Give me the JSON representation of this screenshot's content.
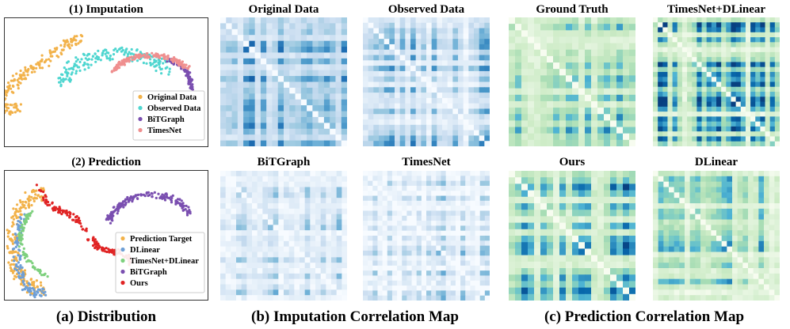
{
  "scatter_panels": [
    {
      "title": "(1) Imputation",
      "legend": [
        {
          "label": "Original Data",
          "color": "#f2b24a"
        },
        {
          "label": "Observed Data",
          "color": "#4fd6d0"
        },
        {
          "label": "BiTGraph",
          "color": "#7a4fb0"
        },
        {
          "label": "TimesNet",
          "color": "#ef8f8f"
        }
      ]
    },
    {
      "title": "(2) Prediction",
      "legend": [
        {
          "label": "Prediction Target",
          "color": "#f2b24a"
        },
        {
          "label": "DLinear",
          "color": "#6e9fd6"
        },
        {
          "label": "TimesNet+DLinear",
          "color": "#7ed07e"
        },
        {
          "label": "BiTGraph",
          "color": "#7a4fb0"
        },
        {
          "label": "Ours",
          "color": "#e02424"
        }
      ]
    }
  ],
  "heatmaps": [
    {
      "title": "Original Data",
      "palette": "blue"
    },
    {
      "title": "Observed Data",
      "palette": "blue"
    },
    {
      "title": "Ground Truth",
      "palette": "gnbu"
    },
    {
      "title": "TimesNet+DLinear",
      "palette": "gnbu"
    },
    {
      "title": "BiTGraph",
      "palette": "blue"
    },
    {
      "title": "TimesNet",
      "palette": "blue"
    },
    {
      "title": "Ours",
      "palette": "gnbu"
    },
    {
      "title": "DLinear",
      "palette": "gnbu"
    }
  ],
  "captions": {
    "a": "(a) Distribution",
    "b": "(b) Imputation Correlation Map",
    "c": "(c) Prediction Correlation Map"
  }
}
